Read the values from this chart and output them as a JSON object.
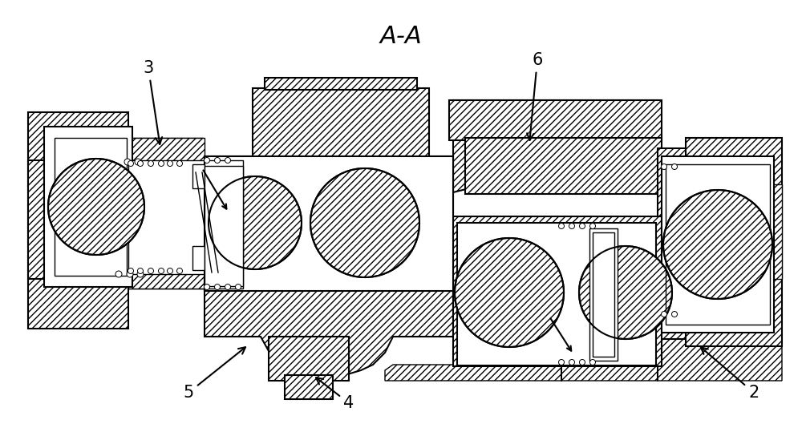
{
  "bg_color": "#ffffff",
  "title": "A-A",
  "figsize": [
    10.0,
    5.44
  ],
  "dpi": 100,
  "lw": 1.0,
  "lw2": 1.5,
  "hatch": "////",
  "gray": "#e8e8e8"
}
